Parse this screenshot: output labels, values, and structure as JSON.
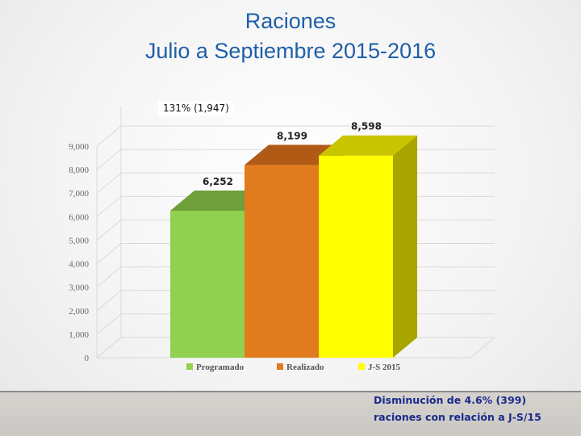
{
  "title_line1": "Raciones",
  "title_line2": "Julio a Septiembre 2015-2016",
  "annotation": "131% (1,947)",
  "note_line1": "Disminución  de 4.6% (399)",
  "note_line2": "raciones con relación a J-S/15",
  "chart_data": {
    "type": "bar",
    "categories": [
      "Programado",
      "Realizado",
      "J-S 2015"
    ],
    "values": [
      6252,
      8199,
      8598
    ],
    "value_labels": [
      "6,252",
      "8,199",
      "8,598"
    ],
    "yticks": [
      "0",
      "1,000",
      "2,000",
      "3,000",
      "4,000",
      "5,000",
      "6,000",
      "7,000",
      "8,000",
      "9,000"
    ],
    "ylim": [
      0,
      9000
    ],
    "legend": [
      "Programado",
      "Realizado",
      "J-S 2015"
    ],
    "legend_position": "bottom",
    "colors": {
      "Programado": {
        "front": "#92d050",
        "top": "#6f9f3a",
        "side": "#5f8a30"
      },
      "Realizado": {
        "front": "#e07b1e",
        "top": "#b05a16",
        "side": "#9a4e12"
      },
      "J-S 2015": {
        "front": "#ffff00",
        "top": "#c8c400",
        "side": "#a8a400"
      }
    },
    "grid": true
  }
}
